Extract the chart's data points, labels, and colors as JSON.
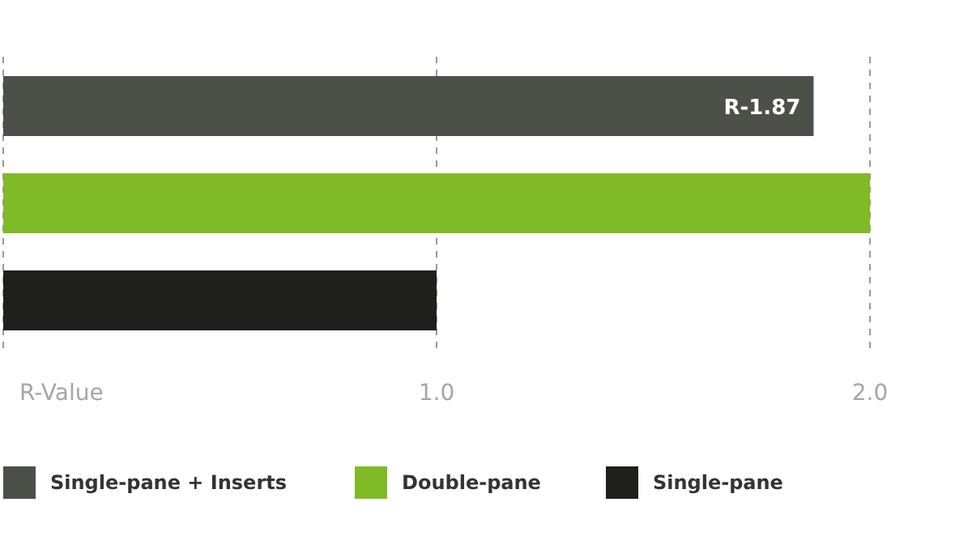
{
  "chart_data": {
    "type": "bar",
    "orientation": "horizontal",
    "stacked": true,
    "xlabel": "R-Value",
    "categories": [
      null,
      null,
      null
    ],
    "series": [
      {
        "name": "Single-pane + Inserts",
        "color": "#4d5049",
        "values": [
          1.87,
          null,
          null
        ],
        "value_labels": [
          "R-1.87",
          null,
          null
        ]
      },
      {
        "name": "Double-pane",
        "color": "#7fba27",
        "values": [
          null,
          2.0,
          null
        ]
      },
      {
        "name": "Single-pane",
        "color": "#1f1f1c",
        "values": [
          null,
          null,
          1.0
        ]
      }
    ],
    "xlim": [
      0,
      2
    ],
    "xticks": [
      {
        "value": 1,
        "label": "1.0"
      },
      {
        "value": 2,
        "label": "2.0"
      }
    ],
    "grid": "x",
    "legend": "bottom"
  }
}
